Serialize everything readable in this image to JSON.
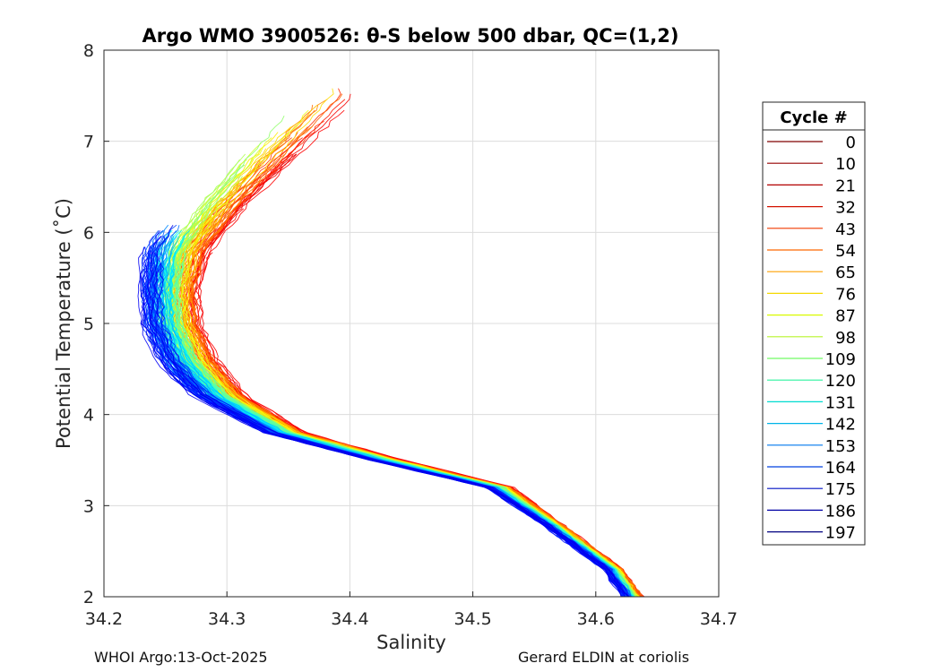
{
  "chart_data": {
    "type": "line",
    "title": "Argo WMO 3900526: θ-S below 500 dbar,  QC=(1,2)",
    "xlabel": "Salinity",
    "ylabel": "Potential Temperature (˚C)",
    "xlim": [
      34.2,
      34.7
    ],
    "ylim": [
      2,
      8
    ],
    "xticks": [
      "34.2",
      "34.3",
      "34.4",
      "34.5",
      "34.6",
      "34.7"
    ],
    "yticks": [
      "2",
      "3",
      "4",
      "5",
      "6",
      "7",
      "8"
    ],
    "grid": true,
    "legend": {
      "title": "Cycle #",
      "placement": "right",
      "entries": [
        "0",
        "10",
        "21",
        "32",
        "43",
        "54",
        "65",
        "76",
        "87",
        "98",
        "109",
        "120",
        "131",
        "142",
        "153",
        "164",
        "175",
        "186",
        "197"
      ],
      "colors": [
        "#800000",
        "#960000",
        "#b10000",
        "#d31300",
        "#f03a00",
        "#fe6700",
        "#fea000",
        "#f4d800",
        "#d9fa00",
        "#b7f42c",
        "#70f964",
        "#2bf49e",
        "#00dcd0",
        "#00b4e8",
        "#0078ee",
        "#0040e0",
        "#0010c4",
        "#0000a4",
        "#000080"
      ]
    },
    "series_template": {
      "salinity": [
        34.636,
        34.62,
        34.57,
        34.53,
        34.44,
        34.36,
        34.31,
        34.285,
        34.272,
        34.27,
        34.28,
        34.31,
        34.4
      ],
      "temperature": [
        2.0,
        2.3,
        2.8,
        3.2,
        3.5,
        3.8,
        4.2,
        4.6,
        5.0,
        5.4,
        5.8,
        6.3,
        7.5
      ]
    },
    "max_cycle": 197
  },
  "footer": {
    "left": "WHOI Argo:13-Oct-2025",
    "right": "Gerard ELDIN at coriolis"
  }
}
